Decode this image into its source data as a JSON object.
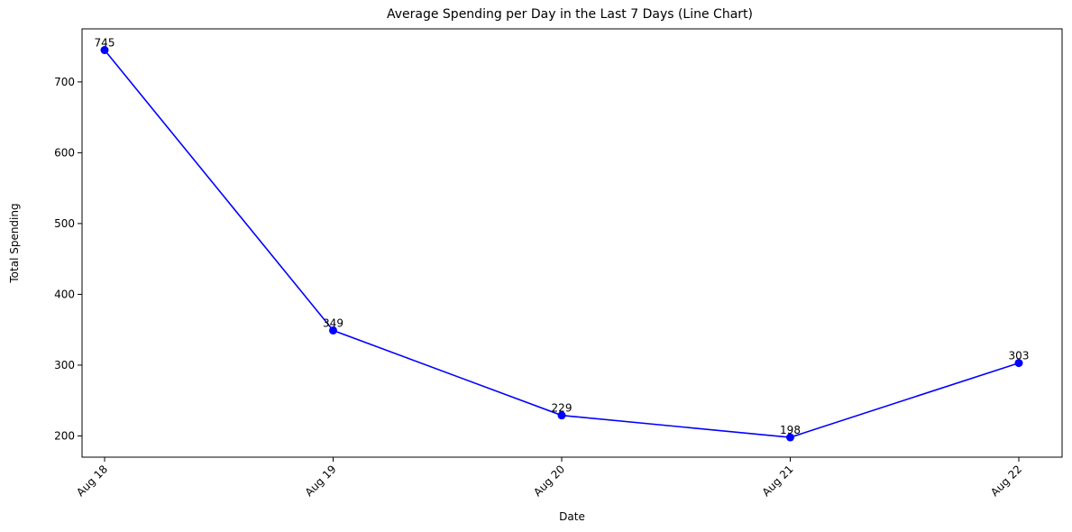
{
  "chart_data": {
    "type": "line",
    "title": "Average Spending per Day in the Last 7 Days (Line Chart)",
    "xlabel": "Date",
    "ylabel": "Total Spending",
    "categories": [
      "Aug 18",
      "Aug 19",
      "Aug 20",
      "Aug 21",
      "Aug 22"
    ],
    "values": [
      745,
      349,
      229,
      198,
      303
    ],
    "data_labels": [
      "745",
      "349",
      "229",
      "198",
      "303"
    ],
    "yticks": [
      200,
      300,
      400,
      500,
      600,
      700
    ],
    "ytick_labels": [
      "200",
      "300",
      "400",
      "500",
      "600",
      "700"
    ],
    "ylim": [
      170,
      775
    ],
    "grid": false,
    "legend": "none",
    "line_color": "#0000ff",
    "marker_color": "#0000ff",
    "marker": "circle"
  }
}
